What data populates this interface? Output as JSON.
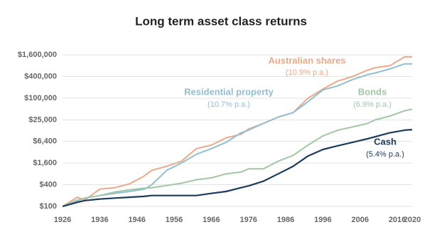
{
  "chart_data": {
    "type": "line",
    "title": "Long term asset class returns",
    "x": [
      1926,
      1930,
      1932,
      1936,
      1940,
      1944,
      1948,
      1950,
      1954,
      1958,
      1962,
      1966,
      1970,
      1974,
      1976,
      1980,
      1984,
      1988,
      1992,
      1996,
      2000,
      2004,
      2008,
      2010,
      2014,
      2018,
      2020
    ],
    "xlim": [
      1926,
      2020
    ],
    "xticks": [
      1926,
      1936,
      1946,
      1956,
      1966,
      1976,
      1986,
      1996,
      2006,
      2016,
      2020
    ],
    "ylim": [
      100,
      1600000
    ],
    "log_scale": true,
    "grid": true,
    "yticks": [
      {
        "value": 100,
        "label": "$100"
      },
      {
        "value": 400,
        "label": "$400"
      },
      {
        "value": 1600,
        "label": "$1,600"
      },
      {
        "value": 6400,
        "label": "$6,400"
      },
      {
        "value": 25000,
        "label": "$25,000"
      },
      {
        "value": 100000,
        "label": "$100,000"
      },
      {
        "value": 400000,
        "label": "$400,000"
      },
      {
        "value": 1600000,
        "label": "$1,600,000"
      }
    ],
    "series": [
      {
        "name": "Australian shares",
        "rate": "(10.9% p.a.)",
        "color": "#e9a98a",
        "values": [
          100,
          180,
          150,
          300,
          330,
          420,
          700,
          1000,
          1300,
          1800,
          4000,
          5000,
          8000,
          10000,
          14000,
          20000,
          30000,
          40000,
          100000,
          180000,
          300000,
          400000,
          600000,
          700000,
          800000,
          1400000,
          1400000
        ]
      },
      {
        "name": "Residential property",
        "rate": "(10.7% p.a.)",
        "color": "#92bfd0",
        "values": [
          100,
          150,
          170,
          200,
          230,
          260,
          300,
          400,
          1000,
          1600,
          2800,
          4000,
          6000,
          11000,
          13000,
          20000,
          30000,
          40000,
          80000,
          170000,
          220000,
          330000,
          450000,
          500000,
          650000,
          900000,
          900000
        ]
      },
      {
        "name": "Bonds",
        "rate": "(6.9% p.a.)",
        "color": "#a3c6a5",
        "values": [
          100,
          140,
          170,
          200,
          250,
          290,
          320,
          330,
          380,
          440,
          550,
          620,
          800,
          900,
          1100,
          1100,
          1800,
          2600,
          5000,
          9000,
          13000,
          16000,
          20000,
          25000,
          32000,
          45000,
          50000
        ]
      },
      {
        "name": "Cash",
        "rate": "(5.4% p.a.)",
        "color": "#1b3a5c",
        "values": [
          100,
          130,
          145,
          160,
          170,
          180,
          190,
          200,
          200,
          200,
          200,
          230,
          260,
          330,
          370,
          500,
          800,
          1300,
          2500,
          3800,
          4800,
          6000,
          7500,
          8500,
          11000,
          13000,
          13500
        ]
      }
    ]
  }
}
